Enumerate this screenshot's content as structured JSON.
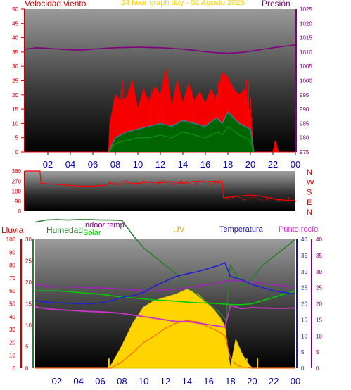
{
  "header": {
    "left_title": "Velocidad viento",
    "center_title": "24 hour graph day - 02 Agosto 2025",
    "right_title": "Presión"
  },
  "colors": {
    "wind": "#ff0000",
    "gust_series": "#2f7f8f",
    "wind_dark": "#006400",
    "pressure": "#800080",
    "direction": "#ff0000",
    "humidity": "#2e7d32",
    "indoor": "#9c27b0",
    "solar": "#00cc00",
    "uv": "#ffd400",
    "temperature": "#2222cc",
    "dewpoint": "#cc33cc",
    "rain": "#ff6600",
    "axis_left": "#cc0000",
    "axis_right": "#800080",
    "panel_bg_top": "#9c9c9c",
    "panel_bg_bottom": "#000000"
  },
  "chart_data": [
    {
      "type": "area",
      "panel": "wind_pressure",
      "x_tick_labels": [
        "02",
        "04",
        "06",
        "08",
        "10",
        "12",
        "14",
        "16",
        "18",
        "20",
        "22",
        "00"
      ],
      "left_ylim": [
        0,
        50
      ],
      "left_ticks": [
        "0",
        "5",
        "10",
        "15",
        "20",
        "25",
        "30",
        "35",
        "40",
        "45",
        "50"
      ],
      "right_ylim": [
        975,
        1025
      ],
      "right_ticks": [
        "975",
        "980",
        "985",
        "990",
        "995",
        "1000",
        "1005",
        "1010",
        "1015",
        "1020",
        "1025"
      ],
      "series": [
        {
          "name": "Velocidad viento",
          "x_hours": [
            0,
            7.4,
            7.5,
            8,
            8.5,
            9,
            9.5,
            10,
            10.5,
            11,
            11.5,
            12,
            12.5,
            13,
            13.5,
            14,
            14.5,
            15,
            15.5,
            16,
            16.5,
            17,
            17.5,
            18,
            18.5,
            19,
            19.5,
            20,
            20.3,
            20.4,
            21,
            22,
            22.2,
            22.5,
            23,
            24
          ],
          "values": [
            0,
            0,
            10,
            20,
            18,
            19,
            25,
            15,
            22,
            17,
            23,
            20,
            29,
            16,
            25,
            17,
            24,
            18,
            21,
            17,
            22,
            18,
            28,
            26,
            22,
            20,
            22,
            13,
            0,
            0,
            0,
            0,
            4,
            0,
            0,
            0
          ]
        },
        {
          "name": "",
          "x_hours": [
            7.4,
            8,
            9,
            10,
            11,
            12,
            13,
            14,
            15,
            16,
            17,
            17.5,
            18,
            19,
            20,
            20.3
          ],
          "values": [
            0,
            5,
            7,
            8,
            9,
            10,
            9,
            11,
            10,
            9,
            12,
            10,
            14,
            10,
            8,
            0
          ]
        },
        {
          "name": "",
          "x_hours": [
            7.4,
            8,
            9,
            10,
            11,
            12,
            13,
            14,
            15,
            16,
            17,
            17.5,
            18,
            19,
            20,
            20.3
          ],
          "values": [
            0,
            3,
            4,
            5,
            5,
            6,
            5,
            7,
            6,
            5,
            7,
            6,
            9,
            6,
            4,
            0
          ]
        },
        {
          "name": "Presión",
          "x_hours": [
            0,
            1,
            2,
            3,
            4,
            5,
            6,
            7,
            8,
            9,
            10,
            11,
            12,
            13,
            14,
            15,
            16,
            17,
            18,
            19,
            20,
            21,
            22,
            23,
            24
          ],
          "values": [
            1011,
            1011.5,
            1011.3,
            1011,
            1010.8,
            1010.7,
            1011,
            1011.3,
            1011.5,
            1011.6,
            1011.7,
            1011.6,
            1011.5,
            1011.3,
            1011,
            1010.6,
            1010.1,
            1009.8,
            1009.6,
            1009.8,
            1010.3,
            1010.9,
            1011.5,
            1012,
            1012.5
          ]
        }
      ]
    },
    {
      "type": "line",
      "panel": "wind_direction",
      "y_ticks": [
        "0",
        "90",
        "180",
        "270",
        "360"
      ],
      "right_labels": [
        "N",
        "W",
        "S",
        "E",
        "N"
      ],
      "ylim": [
        0,
        360
      ],
      "series": [
        {
          "name": "",
          "x_hours": [
            0,
            1.3,
            1.4,
            2,
            3,
            4,
            5,
            6,
            6.5,
            7,
            7.5,
            8,
            9,
            10,
            11,
            12,
            13,
            14,
            15,
            16,
            17,
            17.2,
            17.5,
            17.6,
            18,
            19,
            20,
            21,
            22,
            23,
            24
          ],
          "values": [
            360,
            360,
            250,
            245,
            240,
            230,
            225,
            225,
            228,
            232,
            250,
            240,
            245,
            250,
            262,
            255,
            265,
            250,
            268,
            262,
            270,
            250,
            270,
            120,
            125,
            135,
            145,
            135,
            110,
            100,
            95
          ]
        }
      ]
    },
    {
      "type": "line",
      "panel": "temperature",
      "legend": [
        "Lluvia",
        "Humedad",
        "Indoor temp",
        "Solar",
        "UV",
        "Temperatura",
        "Punto rocío"
      ],
      "x_tick_labels": [
        "02",
        "04",
        "06",
        "08",
        "10",
        "12",
        "14",
        "16",
        "18",
        "20",
        "22",
        "00"
      ],
      "axis_rain": {
        "ylim": [
          0,
          100
        ],
        "ticks": [
          "0",
          "10",
          "20",
          "30",
          "40",
          "50",
          "60",
          "70",
          "80",
          "90",
          "100"
        ]
      },
      "axis_humidity": {
        "ylim": [
          0,
          30
        ],
        "ticks": [
          "0",
          "5",
          "10",
          "15",
          "20",
          "25",
          "30"
        ]
      },
      "axis_temp": {
        "ylim": [
          0,
          40
        ],
        "ticks": [
          "0",
          "5",
          "10",
          "15",
          "20",
          "25",
          "30",
          "35",
          "40"
        ]
      },
      "axis_dew": {
        "ylim": [
          0,
          40
        ],
        "ticks": [
          "0",
          "5",
          "10",
          "15",
          "20",
          "25",
          "30",
          "35",
          "40"
        ]
      },
      "series": [
        {
          "name": "Humedad",
          "x_hours": [
            0,
            1,
            2,
            3,
            4,
            5,
            6,
            7,
            8,
            9,
            10,
            11,
            12,
            13,
            14,
            15,
            16,
            17,
            17.6,
            18,
            18.5,
            19,
            20,
            21,
            22,
            23,
            24
          ],
          "values": [
            34,
            34.5,
            34.6,
            34.5,
            34.6,
            34.6,
            34.5,
            34.5,
            34.4,
            31,
            28,
            26,
            24,
            22,
            19,
            17,
            15,
            13,
            11,
            24,
            22,
            19,
            21,
            24,
            26,
            28,
            30
          ]
        },
        {
          "name": "Indoor temp",
          "x_hours": [
            0,
            1,
            2,
            3,
            4,
            5,
            6,
            7,
            8,
            9,
            10,
            11,
            12,
            13,
            14,
            15,
            16,
            17,
            18,
            19,
            20,
            21,
            22,
            23,
            24
          ],
          "values": [
            26,
            25.5,
            25.3,
            25.2,
            25.1,
            25,
            24.9,
            24.8,
            24.5,
            24.3,
            24.1,
            24,
            24.3,
            24.6,
            25,
            25.5,
            26,
            26.6,
            27.3,
            27.1,
            26.7,
            26.3,
            25.9,
            25.5,
            25.2
          ]
        },
        {
          "name": "Solar",
          "x_hours": [
            0,
            1,
            2,
            3,
            4,
            5,
            6,
            7,
            8,
            9,
            10,
            11,
            12,
            13,
            14,
            15,
            16,
            17,
            18,
            19,
            20,
            21,
            22,
            23,
            24
          ],
          "values": [
            24,
            24,
            24,
            23.8,
            23.5,
            23.2,
            23,
            22.5,
            22.1,
            21.8,
            21.5,
            21.2,
            21,
            20.8,
            20.5,
            20.3,
            20.2,
            20,
            19.8,
            19.7,
            20,
            21,
            22,
            23,
            24
          ]
        },
        {
          "name": "UV",
          "x_hours": [
            0,
            6.8,
            7,
            8,
            9,
            10,
            11,
            12,
            13,
            14,
            15,
            16,
            17,
            17.5,
            18,
            18.5,
            19,
            19.5,
            20
          ],
          "values": [
            0,
            0,
            1,
            7,
            14,
            19,
            21,
            22,
            23,
            24.5,
            23,
            20,
            16,
            13,
            0,
            9,
            5,
            2,
            0
          ]
        },
        {
          "name": "Temperatura",
          "x_hours": [
            0,
            1,
            2,
            3,
            4,
            5,
            6,
            7,
            8,
            9,
            10,
            11,
            12,
            13,
            14,
            15,
            16,
            17,
            17.5,
            18,
            19,
            20,
            21,
            22,
            23,
            24
          ],
          "values": [
            21,
            20.5,
            20.3,
            20.2,
            20,
            20,
            20.3,
            21,
            22,
            22.5,
            23.5,
            25.5,
            27,
            28.5,
            29.3,
            30,
            31,
            32,
            32.8,
            28.5,
            27.5,
            26,
            25,
            24,
            23.5,
            23
          ]
        },
        {
          "name": "Punto rocío",
          "x_hours": [
            0,
            1,
            2,
            3,
            4,
            5,
            6,
            7,
            8,
            9,
            10,
            11,
            12,
            13,
            14,
            15,
            16,
            17,
            17.5,
            18,
            19,
            20,
            21,
            22,
            23,
            24
          ],
          "values": [
            19,
            18.5,
            18.2,
            18,
            17.8,
            17.6,
            17.5,
            17.3,
            17,
            16.5,
            16,
            15.5,
            15,
            14.5,
            14.5,
            14,
            13.5,
            13,
            12.7,
            19.5,
            18.5,
            18.8,
            18.7,
            18.6,
            18.6,
            18.7
          ]
        },
        {
          "name": "Lluvia",
          "x_hours": [
            0,
            6.5,
            7,
            8,
            9,
            10,
            11,
            12,
            13,
            14,
            15,
            16,
            17,
            17.5,
            18,
            18.5,
            19,
            20,
            21,
            22,
            23,
            24
          ],
          "values": [
            0,
            0,
            0,
            5,
            12,
            20,
            25,
            31,
            35,
            37,
            36,
            32,
            28,
            25,
            8,
            3,
            1,
            0,
            0,
            0,
            0,
            0
          ]
        }
      ]
    }
  ]
}
